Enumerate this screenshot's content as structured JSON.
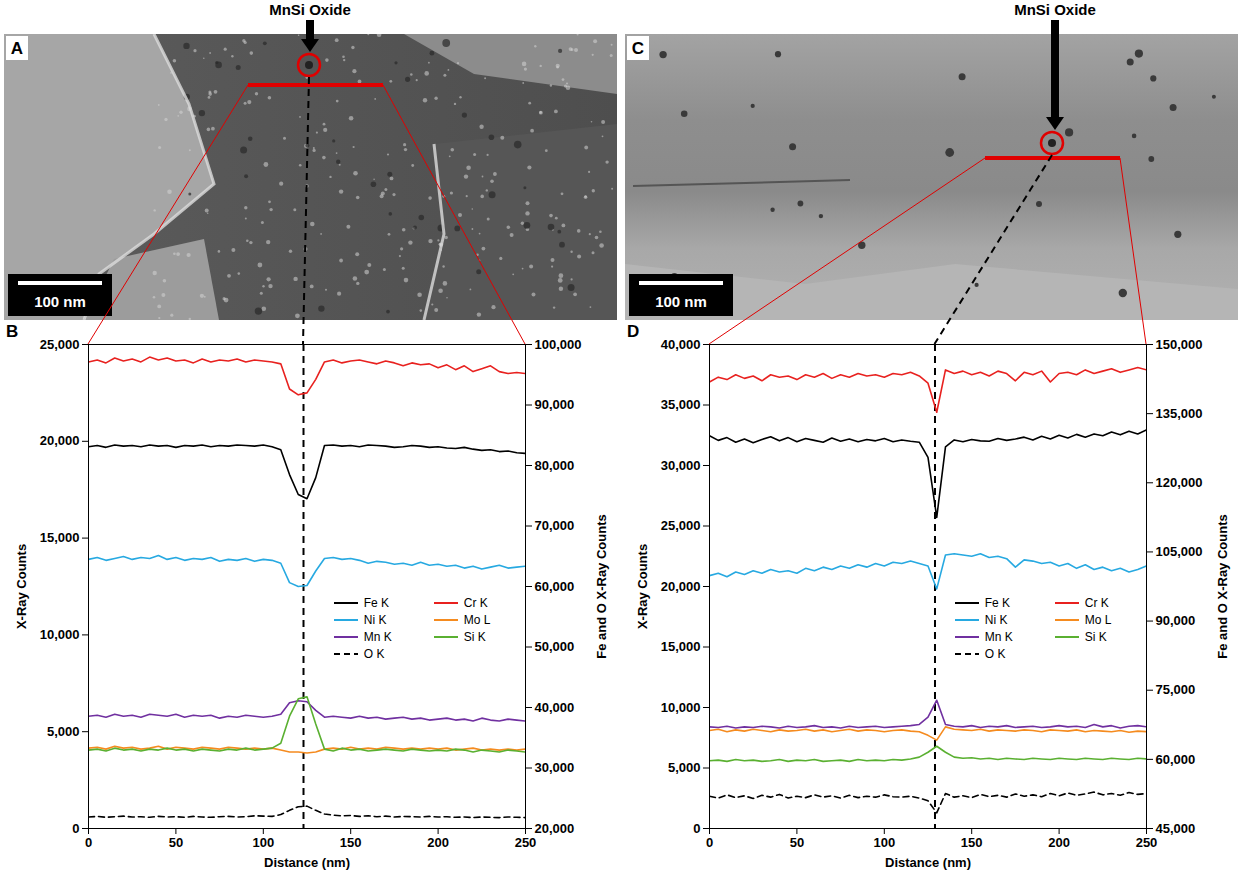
{
  "panels": [
    {
      "label": "A",
      "annotation": "MnSi Oxide",
      "scale_bar": "100 nm"
    },
    {
      "label": "C",
      "annotation": "MnSi Oxide",
      "scale_bar": "100 nm"
    }
  ],
  "chart_data": [
    {
      "type": "line",
      "panel_label": "B",
      "legend": "right",
      "xlabel": "Distance (nm)",
      "ylabel": "X-Ray Counts",
      "y2label": "Fe and O X-Ray Counts",
      "xlim": [
        0,
        250
      ],
      "xticks": [
        0,
        50,
        100,
        150,
        200,
        250
      ],
      "ylim": [
        0,
        25000
      ],
      "yticks": [
        0,
        {
          "value": 5000,
          "label": "5,000"
        },
        {
          "value": 10000,
          "label": "10,000"
        },
        {
          "value": 15000,
          "label": "15,000"
        },
        {
          "value": 20000,
          "label": "20,000"
        },
        {
          "value": 25000,
          "label": "25,000"
        }
      ],
      "y2lim": [
        20000,
        100000
      ],
      "y2ticks": [
        {
          "value": 20000,
          "label": "20,000"
        },
        {
          "value": 30000,
          "label": "30,000"
        },
        {
          "value": 40000,
          "label": "40,000"
        },
        {
          "value": 50000,
          "label": "50,000"
        },
        {
          "value": 60000,
          "label": "60,000"
        },
        {
          "value": 70000,
          "label": "70,000"
        },
        {
          "value": 80000,
          "label": "80,000"
        },
        {
          "value": 90000,
          "label": "90,000"
        },
        {
          "value": 100000,
          "label": "100,000"
        }
      ],
      "marker_line_x": 123,
      "x": [
        0,
        5,
        10,
        15,
        20,
        25,
        30,
        35,
        40,
        45,
        50,
        55,
        60,
        65,
        70,
        75,
        80,
        85,
        90,
        95,
        100,
        105,
        110,
        115,
        120,
        125,
        130,
        135,
        140,
        145,
        150,
        155,
        160,
        165,
        170,
        175,
        180,
        185,
        190,
        195,
        200,
        205,
        210,
        215,
        220,
        225,
        230,
        235,
        240,
        245,
        250
      ],
      "series": [
        {
          "name": "Fe K",
          "color": "#000000",
          "axis": "y2",
          "values": [
            83100,
            83300,
            83000,
            83400,
            83200,
            83300,
            83100,
            83400,
            83200,
            83300,
            83000,
            83300,
            83200,
            83400,
            83100,
            83300,
            83200,
            83400,
            83300,
            83200,
            83400,
            83100,
            82600,
            78500,
            75200,
            74500,
            78000,
            83300,
            83400,
            83200,
            83300,
            83100,
            83400,
            83300,
            83200,
            83000,
            83100,
            83300,
            83200,
            83000,
            83100,
            82900,
            82800,
            83000,
            82700,
            82500,
            82600,
            82300,
            82400,
            82100,
            82000
          ]
        },
        {
          "name": "Cr K",
          "color": "#e8211f",
          "values": [
            24100,
            24200,
            24050,
            24300,
            24150,
            24250,
            24100,
            24350,
            24200,
            24300,
            24150,
            24200,
            24050,
            24250,
            24100,
            24200,
            24150,
            24250,
            24100,
            24200,
            24150,
            24100,
            24000,
            22700,
            22400,
            22500,
            23200,
            24100,
            24200,
            24050,
            24150,
            24200,
            24100,
            24000,
            24150,
            24050,
            23900,
            24050,
            23950,
            24000,
            23800,
            23950,
            23700,
            23900,
            23600,
            23750,
            23900,
            23600,
            23500,
            23550,
            23500
          ]
        },
        {
          "name": "Ni K",
          "color": "#27a9e1",
          "values": [
            13900,
            14000,
            13850,
            13950,
            14050,
            13900,
            14000,
            13950,
            14100,
            13900,
            14000,
            13850,
            13950,
            13900,
            14000,
            13800,
            13900,
            13850,
            13950,
            13800,
            13900,
            13850,
            13700,
            12700,
            12500,
            12550,
            13300,
            13950,
            14000,
            13900,
            13950,
            13850,
            13700,
            13800,
            13750,
            13650,
            13700,
            13600,
            13750,
            13600,
            13650,
            13550,
            13600,
            13450,
            13550,
            13400,
            13500,
            13600,
            13450,
            13500,
            13550
          ]
        },
        {
          "name": "Mo L",
          "color": "#f58b1f",
          "values": [
            4150,
            4200,
            4100,
            4250,
            4150,
            4200,
            4100,
            4150,
            4250,
            4100,
            4200,
            4150,
            4100,
            4200,
            4150,
            4100,
            4200,
            4150,
            4100,
            4150,
            4100,
            4150,
            4050,
            3950,
            3950,
            3900,
            3950,
            4100,
            4150,
            4100,
            4200,
            4100,
            4150,
            4100,
            4200,
            4150,
            4100,
            4150,
            4100,
            4150,
            4100,
            4150,
            4050,
            4100,
            4150,
            4050,
            4100,
            4050,
            4100,
            4050,
            4100
          ]
        },
        {
          "name": "Mn K",
          "color": "#7030a0",
          "values": [
            5800,
            5850,
            5750,
            5900,
            5800,
            5850,
            5750,
            5900,
            5850,
            5800,
            5900,
            5750,
            5850,
            5800,
            5850,
            5700,
            5800,
            5750,
            5850,
            5800,
            5750,
            5800,
            5900,
            6500,
            6600,
            6550,
            6100,
            5750,
            5800,
            5750,
            5700,
            5800,
            5700,
            5750,
            5650,
            5700,
            5750,
            5650,
            5700,
            5600,
            5650,
            5700,
            5600,
            5650,
            5550,
            5700,
            5600,
            5550,
            5650,
            5600,
            5550
          ]
        },
        {
          "name": "Si K",
          "color": "#5ab031",
          "values": [
            4050,
            4100,
            4000,
            4150,
            4050,
            4100,
            4000,
            4100,
            4050,
            4150,
            4050,
            4100,
            4000,
            4100,
            4050,
            4000,
            4100,
            4050,
            4150,
            4050,
            4100,
            4150,
            4400,
            5800,
            6700,
            6800,
            5400,
            4100,
            4000,
            4150,
            4050,
            4100,
            4000,
            4050,
            4100,
            4050,
            4000,
            4100,
            4050,
            4000,
            4050,
            4000,
            4100,
            4050,
            3950,
            4050,
            4000,
            3950,
            4050,
            4000,
            3950
          ]
        },
        {
          "name": "O K",
          "color": "#000000",
          "axis": "y2",
          "line_style": "dashed",
          "values": [
            21900,
            22000,
            21850,
            21950,
            22050,
            21900,
            21950,
            21850,
            22000,
            21900,
            21950,
            21850,
            22000,
            21900,
            21850,
            21950,
            22000,
            21900,
            21950,
            22100,
            22050,
            22000,
            22300,
            23000,
            23600,
            23700,
            23000,
            22400,
            22200,
            22100,
            22150,
            22000,
            22100,
            21950,
            22050,
            21900,
            22000,
            21950,
            21900,
            22000,
            21900,
            21950,
            21850,
            21900,
            21800,
            21900,
            21850,
            21800,
            21900,
            21850,
            21800
          ]
        }
      ]
    },
    {
      "type": "line",
      "panel_label": "D",
      "legend": "right",
      "xlabel": "Distance (nm)",
      "ylabel": "X-Ray Counts",
      "y2label": "Fe and O X-Ray Counts",
      "xlim": [
        0,
        250
      ],
      "xticks": [
        0,
        50,
        100,
        150,
        200,
        250
      ],
      "ylim": [
        0,
        40000
      ],
      "yticks": [
        0,
        {
          "value": 5000,
          "label": "5,000"
        },
        {
          "value": 10000,
          "label": "10,000"
        },
        {
          "value": 15000,
          "label": "15,000"
        },
        {
          "value": 20000,
          "label": "20,000"
        },
        {
          "value": 25000,
          "label": "25,000"
        },
        {
          "value": 30000,
          "label": "30,000"
        },
        {
          "value": 35000,
          "label": "35,000"
        },
        {
          "value": 40000,
          "label": "40,000"
        }
      ],
      "y2lim": [
        45000,
        150000
      ],
      "y2ticks": [
        {
          "value": 45000,
          "label": "45,000"
        },
        {
          "value": 60000,
          "label": "60,000"
        },
        {
          "value": 75000,
          "label": "75,000"
        },
        {
          "value": 90000,
          "label": "90,000"
        },
        {
          "value": 105000,
          "label": "105,000"
        },
        {
          "value": 120000,
          "label": "120,000"
        },
        {
          "value": 135000,
          "label": "135,000"
        },
        {
          "value": 150000,
          "label": "150,000"
        }
      ],
      "marker_line_x": 129,
      "x": [
        0,
        5,
        10,
        15,
        20,
        25,
        30,
        35,
        40,
        45,
        50,
        55,
        60,
        65,
        70,
        75,
        80,
        85,
        90,
        95,
        100,
        105,
        110,
        115,
        120,
        125,
        130,
        135,
        140,
        145,
        150,
        155,
        160,
        165,
        170,
        175,
        180,
        185,
        190,
        195,
        200,
        205,
        210,
        215,
        220,
        225,
        230,
        235,
        240,
        245,
        250
      ],
      "series": [
        {
          "name": "Fe K",
          "color": "#000000",
          "axis": "y2",
          "values": [
            130200,
            129200,
            129800,
            128800,
            129500,
            128700,
            129400,
            130000,
            129100,
            129800,
            128900,
            129600,
            129200,
            128800,
            129700,
            129000,
            129500,
            128900,
            129400,
            129100,
            129600,
            128900,
            129300,
            129000,
            128800,
            125500,
            112500,
            127800,
            129300,
            128900,
            129400,
            129100,
            129000,
            129600,
            129200,
            129500,
            129900,
            129300,
            130100,
            129500,
            130300,
            129700,
            130500,
            129900,
            130600,
            130200,
            131000,
            130400,
            131200,
            130600,
            131500
          ]
        },
        {
          "name": "Cr K",
          "color": "#e8211f",
          "values": [
            36900,
            37300,
            37100,
            37500,
            37200,
            37400,
            37000,
            37500,
            37300,
            37400,
            37100,
            37500,
            37300,
            37600,
            37200,
            37500,
            37300,
            37600,
            37400,
            37500,
            37300,
            37600,
            37500,
            37700,
            37400,
            36800,
            34400,
            37900,
            37600,
            37800,
            37500,
            37700,
            37400,
            37800,
            37600,
            37000,
            37700,
            37500,
            37800,
            36900,
            37600,
            37700,
            37500,
            37900,
            37600,
            37800,
            38000,
            37700,
            37900,
            38100,
            37900
          ]
        },
        {
          "name": "Ni K",
          "color": "#27a9e1",
          "values": [
            20900,
            21100,
            20800,
            21200,
            21000,
            21300,
            21100,
            21400,
            21200,
            21300,
            21100,
            21500,
            21300,
            21600,
            21400,
            21700,
            21500,
            21800,
            21600,
            21900,
            21700,
            22000,
            21900,
            22100,
            21900,
            21700,
            19800,
            22600,
            22700,
            22600,
            22500,
            22700,
            22400,
            22500,
            22300,
            21600,
            22200,
            22100,
            21900,
            22000,
            21700,
            21900,
            21500,
            21800,
            21400,
            21600,
            21300,
            21500,
            21200,
            21400,
            21700
          ]
        },
        {
          "name": "Mo L",
          "color": "#f58b1f",
          "values": [
            8100,
            8200,
            8000,
            8150,
            8050,
            8200,
            8100,
            8000,
            8150,
            8050,
            8100,
            8200,
            8050,
            8150,
            8000,
            8100,
            8200,
            8050,
            8150,
            8100,
            8000,
            8100,
            8150,
            8050,
            8000,
            7700,
            7300,
            8400,
            8200,
            8150,
            8100,
            8200,
            8050,
            8150,
            8100,
            8050,
            8150,
            8100,
            8000,
            8150,
            8100,
            8050,
            8150,
            8000,
            8100,
            8050,
            8000,
            8100,
            7950,
            8050,
            8000
          ]
        },
        {
          "name": "Mn K",
          "color": "#7030a0",
          "values": [
            8400,
            8350,
            8450,
            8300,
            8400,
            8350,
            8450,
            8400,
            8300,
            8450,
            8350,
            8400,
            8500,
            8350,
            8400,
            8300,
            8450,
            8350,
            8400,
            8450,
            8350,
            8400,
            8450,
            8500,
            8600,
            9200,
            10600,
            8600,
            8450,
            8400,
            8500,
            8350,
            8450,
            8400,
            8500,
            8350,
            8400,
            8450,
            8350,
            8400,
            8500,
            8400,
            8450,
            8350,
            8600,
            8400,
            8500,
            8300,
            8450,
            8500,
            8400
          ]
        },
        {
          "name": "Si K",
          "color": "#5ab031",
          "values": [
            5600,
            5650,
            5550,
            5700,
            5600,
            5650,
            5550,
            5600,
            5700,
            5550,
            5650,
            5600,
            5700,
            5550,
            5600,
            5650,
            5550,
            5700,
            5600,
            5650,
            5600,
            5700,
            5650,
            5750,
            5900,
            6300,
            6800,
            6300,
            5900,
            5800,
            5850,
            5750,
            5800,
            5700,
            5800,
            5750,
            5700,
            5800,
            5750,
            5700,
            5800,
            5750,
            5700,
            5800,
            5750,
            5700,
            5800,
            5750,
            5700,
            5800,
            5750
          ]
        },
        {
          "name": "O K",
          "color": "#000000",
          "axis": "y2",
          "line_style": "dashed",
          "values": [
            52000,
            51600,
            52300,
            51700,
            52100,
            51500,
            52200,
            51800,
            52400,
            51600,
            52000,
            51700,
            52300,
            51800,
            52100,
            51600,
            52200,
            51700,
            52000,
            51800,
            52300,
            51900,
            51800,
            52000,
            51600,
            51000,
            48400,
            52600,
            51800,
            52100,
            51700,
            52400,
            51900,
            52200,
            51800,
            52500,
            52000,
            52300,
            51900,
            52600,
            52100,
            52700,
            52200,
            52500,
            52900,
            52300,
            52600,
            52200,
            52800,
            52400,
            52600
          ]
        }
      ]
    }
  ]
}
